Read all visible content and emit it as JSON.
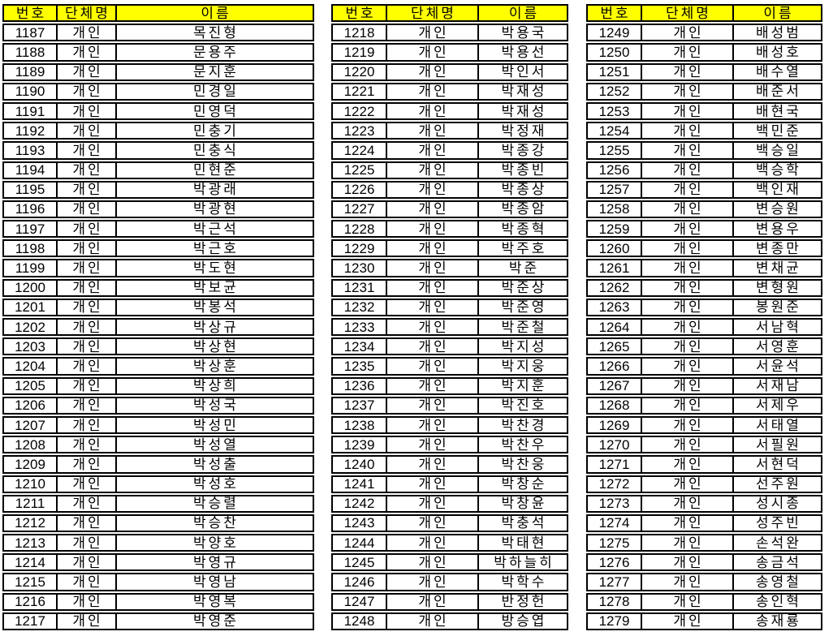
{
  "page": {
    "background_color": "#ffffff",
    "header_background_color": "#ffff00",
    "border_color": "#000000",
    "text_color": "#000000"
  },
  "tables": [
    {
      "headers": [
        "번호",
        "단체명",
        "이름"
      ],
      "rows": [
        [
          "1187",
          "개인",
          "목진형"
        ],
        [
          "1188",
          "개인",
          "문용주"
        ],
        [
          "1189",
          "개인",
          "문지훈"
        ],
        [
          "1190",
          "개인",
          "민경일"
        ],
        [
          "1191",
          "개인",
          "민영덕"
        ],
        [
          "1192",
          "개인",
          "민충기"
        ],
        [
          "1193",
          "개인",
          "민충식"
        ],
        [
          "1194",
          "개인",
          "민현준"
        ],
        [
          "1195",
          "개인",
          "박광래"
        ],
        [
          "1196",
          "개인",
          "박광현"
        ],
        [
          "1197",
          "개인",
          "박근석"
        ],
        [
          "1198",
          "개인",
          "박근호"
        ],
        [
          "1199",
          "개인",
          "박도현"
        ],
        [
          "1200",
          "개인",
          "박보균"
        ],
        [
          "1201",
          "개인",
          "박봉석"
        ],
        [
          "1202",
          "개인",
          "박상규"
        ],
        [
          "1203",
          "개인",
          "박상현"
        ],
        [
          "1204",
          "개인",
          "박상훈"
        ],
        [
          "1205",
          "개인",
          "박상희"
        ],
        [
          "1206",
          "개인",
          "박성국"
        ],
        [
          "1207",
          "개인",
          "박성민"
        ],
        [
          "1208",
          "개인",
          "박성열"
        ],
        [
          "1209",
          "개인",
          "박성출"
        ],
        [
          "1210",
          "개인",
          "박성호"
        ],
        [
          "1211",
          "개인",
          "박승렬"
        ],
        [
          "1212",
          "개인",
          "박승찬"
        ],
        [
          "1213",
          "개인",
          "박양호"
        ],
        [
          "1214",
          "개인",
          "박영규"
        ],
        [
          "1215",
          "개인",
          "박영남"
        ],
        [
          "1216",
          "개인",
          "박영복"
        ],
        [
          "1217",
          "개인",
          "박영준"
        ]
      ]
    },
    {
      "headers": [
        "번호",
        "단체명",
        "이름"
      ],
      "rows": [
        [
          "1218",
          "개인",
          "박용국"
        ],
        [
          "1219",
          "개인",
          "박용선"
        ],
        [
          "1220",
          "개인",
          "박인서"
        ],
        [
          "1221",
          "개인",
          "박재성"
        ],
        [
          "1222",
          "개인",
          "박재성"
        ],
        [
          "1223",
          "개인",
          "박정재"
        ],
        [
          "1224",
          "개인",
          "박종강"
        ],
        [
          "1225",
          "개인",
          "박종빈"
        ],
        [
          "1226",
          "개인",
          "박종상"
        ],
        [
          "1227",
          "개인",
          "박종암"
        ],
        [
          "1228",
          "개인",
          "박종혁"
        ],
        [
          "1229",
          "개인",
          "박주호"
        ],
        [
          "1230",
          "개인",
          "박준"
        ],
        [
          "1231",
          "개인",
          "박준상"
        ],
        [
          "1232",
          "개인",
          "박준영"
        ],
        [
          "1233",
          "개인",
          "박준철"
        ],
        [
          "1234",
          "개인",
          "박지성"
        ],
        [
          "1235",
          "개인",
          "박지웅"
        ],
        [
          "1236",
          "개인",
          "박지훈"
        ],
        [
          "1237",
          "개인",
          "박진호"
        ],
        [
          "1238",
          "개인",
          "박찬경"
        ],
        [
          "1239",
          "개인",
          "박찬우"
        ],
        [
          "1240",
          "개인",
          "박찬웅"
        ],
        [
          "1241",
          "개인",
          "박창순"
        ],
        [
          "1242",
          "개인",
          "박창윤"
        ],
        [
          "1243",
          "개인",
          "박충석"
        ],
        [
          "1244",
          "개인",
          "박태현"
        ],
        [
          "1245",
          "개인",
          "박하늘히"
        ],
        [
          "1246",
          "개인",
          "박학수"
        ],
        [
          "1247",
          "개인",
          "반정헌"
        ],
        [
          "1248",
          "개인",
          "방승엽"
        ]
      ]
    },
    {
      "headers": [
        "번호",
        "단체명",
        "이름"
      ],
      "rows": [
        [
          "1249",
          "개인",
          "배성범"
        ],
        [
          "1250",
          "개인",
          "배성호"
        ],
        [
          "1251",
          "개인",
          "배수열"
        ],
        [
          "1252",
          "개인",
          "배준서"
        ],
        [
          "1253",
          "개인",
          "배현국"
        ],
        [
          "1254",
          "개인",
          "백민준"
        ],
        [
          "1255",
          "개인",
          "백승일"
        ],
        [
          "1256",
          "개인",
          "백승학"
        ],
        [
          "1257",
          "개인",
          "백인재"
        ],
        [
          "1258",
          "개인",
          "변승원"
        ],
        [
          "1259",
          "개인",
          "변용우"
        ],
        [
          "1260",
          "개인",
          "변종만"
        ],
        [
          "1261",
          "개인",
          "변채균"
        ],
        [
          "1262",
          "개인",
          "변형원"
        ],
        [
          "1263",
          "개인",
          "봉원준"
        ],
        [
          "1264",
          "개인",
          "서남혁"
        ],
        [
          "1265",
          "개인",
          "서영훈"
        ],
        [
          "1266",
          "개인",
          "서윤석"
        ],
        [
          "1267",
          "개인",
          "서재남"
        ],
        [
          "1268",
          "개인",
          "서제우"
        ],
        [
          "1269",
          "개인",
          "서태열"
        ],
        [
          "1270",
          "개인",
          "서필원"
        ],
        [
          "1271",
          "개인",
          "서현덕"
        ],
        [
          "1272",
          "개인",
          "선주원"
        ],
        [
          "1273",
          "개인",
          "성시종"
        ],
        [
          "1274",
          "개인",
          "성주빈"
        ],
        [
          "1275",
          "개인",
          "손석완"
        ],
        [
          "1276",
          "개인",
          "송금석"
        ],
        [
          "1277",
          "개인",
          "송영철"
        ],
        [
          "1278",
          "개인",
          "송인혁"
        ],
        [
          "1279",
          "개인",
          "송재룡"
        ]
      ]
    }
  ]
}
